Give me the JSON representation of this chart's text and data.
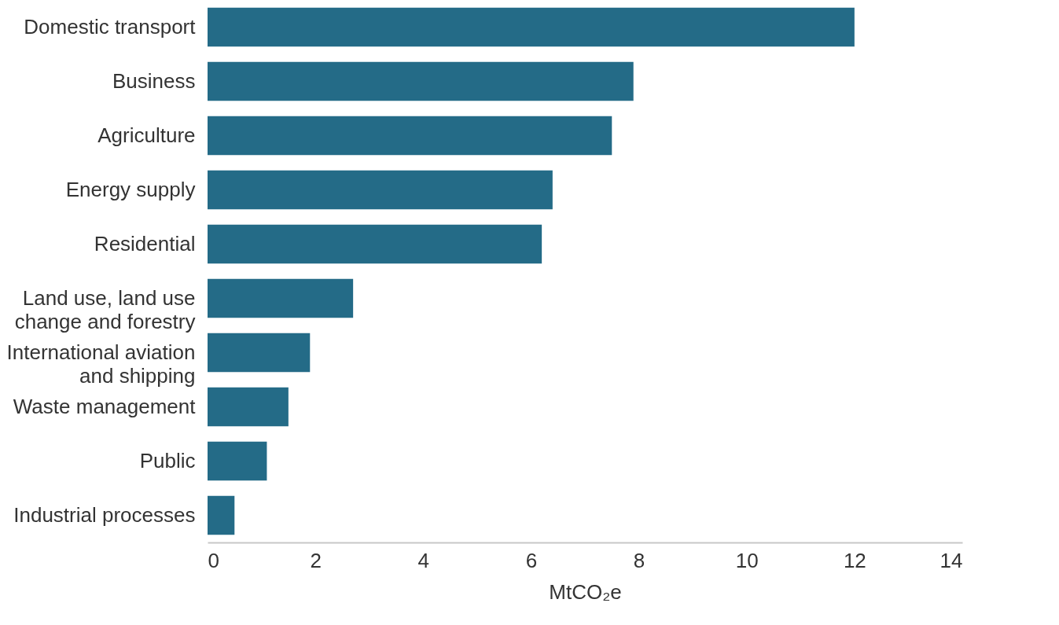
{
  "chart_data": {
    "type": "bar",
    "orientation": "horizontal",
    "xlabel": "MtCO₂e",
    "categories": [
      "Domestic transport",
      "Business",
      "Agriculture",
      "Energy supply",
      "Residential",
      "Land use, land use change and forestry",
      "International aviation and shipping",
      "Waste management",
      "Public",
      "Industrial processes"
    ],
    "values": [
      12.0,
      7.9,
      7.5,
      6.4,
      6.2,
      2.7,
      1.9,
      1.5,
      1.1,
      0.5
    ],
    "color": "#246b87",
    "xlim": [
      0,
      14
    ],
    "xticks": [
      0,
      2,
      4,
      6,
      8,
      10,
      12,
      14
    ],
    "grid": false
  }
}
